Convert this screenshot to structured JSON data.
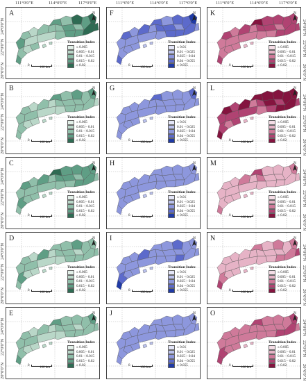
{
  "coordinates": {
    "longitude_labels": [
      "111°0'0\"E",
      "114°0'0\"E",
      "117°0'0\"E"
    ],
    "latitude_labels": [
      "24°0'0\"N",
      "22°0'0\"N",
      "20°0'0\"N"
    ]
  },
  "legend_title": "Transition Index",
  "scale_zero": "0",
  "scale_label": "100 km",
  "north_letter": "N",
  "columns": [
    {
      "colors": [
        "#e2efe8",
        "#b9d7c8",
        "#90bfaa",
        "#5f9e85",
        "#2e6b53"
      ],
      "classes": [
        "≤ 0.005",
        "0.005 – 0.01",
        "0.01 – 0.015",
        "0.015 – 0.02",
        "≥ 0.02"
      ],
      "panels": [
        {
          "label": "A",
          "levels": [
            3,
            2,
            1,
            2,
            1,
            2,
            3,
            2,
            1,
            2,
            3,
            4,
            2,
            3,
            4,
            3,
            2,
            3,
            4,
            4,
            2,
            1,
            2,
            3
          ]
        },
        {
          "label": "B",
          "levels": [
            2,
            2,
            1,
            2,
            2,
            1,
            3,
            2,
            1,
            2,
            2,
            3,
            2,
            2,
            3,
            2,
            1,
            2,
            2,
            1,
            1,
            1,
            2,
            2
          ]
        },
        {
          "label": "C",
          "levels": [
            2,
            3,
            2,
            3,
            2,
            2,
            4,
            3,
            2,
            3,
            3,
            3,
            2,
            3,
            3,
            2,
            2,
            3,
            3,
            2,
            2,
            2,
            3,
            2
          ]
        },
        {
          "label": "D",
          "levels": [
            2,
            2,
            1,
            3,
            2,
            1,
            2,
            2,
            1,
            2,
            2,
            3,
            1,
            2,
            2,
            2,
            1,
            2,
            2,
            2,
            1,
            1,
            3,
            2
          ]
        },
        {
          "label": "E",
          "levels": [
            2,
            2,
            1,
            2,
            2,
            1,
            3,
            2,
            1,
            2,
            2,
            2,
            1,
            2,
            3,
            2,
            1,
            2,
            2,
            2,
            1,
            1,
            2,
            3
          ]
        }
      ]
    },
    {
      "colors": [
        "#e3e5f7",
        "#b9c0ec",
        "#8d97dd",
        "#5c6acb",
        "#1f3aa6"
      ],
      "classes": [
        "≤ 0.01",
        "0.01 – 0.025",
        "0.025 – 0.04",
        "0.04 – 0.055",
        "≥ 0.055"
      ],
      "panels": [
        {
          "label": "F",
          "levels": [
            2,
            3,
            2,
            3,
            2,
            2,
            3,
            3,
            2,
            2,
            3,
            3,
            2,
            3,
            4,
            3,
            2,
            3,
            3,
            2,
            2,
            2,
            2,
            3
          ]
        },
        {
          "label": "G",
          "levels": [
            2,
            2,
            2,
            2,
            2,
            2,
            3,
            2,
            2,
            2,
            2,
            2,
            2,
            2,
            3,
            2,
            2,
            2,
            2,
            2,
            2,
            2,
            2,
            2
          ]
        },
        {
          "label": "H",
          "levels": [
            2,
            2,
            2,
            2,
            2,
            2,
            2,
            2,
            2,
            2,
            2,
            2,
            2,
            2,
            2,
            2,
            2,
            2,
            2,
            2,
            2,
            2,
            2,
            2
          ]
        },
        {
          "label": "I",
          "levels": [
            2,
            2,
            2,
            3,
            2,
            2,
            2,
            2,
            2,
            2,
            2,
            3,
            2,
            2,
            2,
            2,
            2,
            3,
            2,
            2,
            2,
            2,
            3,
            4
          ]
        },
        {
          "label": "J",
          "levels": [
            2,
            2,
            2,
            2,
            2,
            2,
            2,
            2,
            2,
            2,
            2,
            2,
            2,
            2,
            2,
            2,
            2,
            2,
            2,
            2,
            2,
            2,
            2,
            2
          ]
        }
      ]
    },
    {
      "colors": [
        "#f4dde6",
        "#e6b3c6",
        "#cf7a9a",
        "#b04372",
        "#84143f"
      ],
      "classes": [
        "≤ 0.005",
        "0.005 – 0.01",
        "0.01 – 0.015",
        "0.015 – 0.02",
        "≥ 0.02"
      ],
      "panels": [
        {
          "label": "K",
          "levels": [
            2,
            3,
            2,
            3,
            2,
            2,
            4,
            3,
            2,
            3,
            3,
            3,
            2,
            3,
            3,
            2,
            2,
            3,
            3,
            3,
            2,
            2,
            2,
            3
          ]
        },
        {
          "label": "L",
          "levels": [
            3,
            4,
            3,
            4,
            3,
            2,
            4,
            3,
            3,
            4,
            4,
            4,
            3,
            4,
            4,
            3,
            2,
            4,
            4,
            3,
            3,
            2,
            3,
            4
          ]
        },
        {
          "label": "M",
          "levels": [
            1,
            1,
            1,
            2,
            1,
            1,
            3,
            2,
            1,
            1,
            1,
            1,
            1,
            1,
            2,
            1,
            1,
            1,
            1,
            1,
            1,
            1,
            1,
            2
          ]
        },
        {
          "label": "N",
          "levels": [
            1,
            1,
            1,
            1,
            1,
            1,
            2,
            1,
            1,
            1,
            1,
            2,
            1,
            1,
            2,
            1,
            1,
            2,
            2,
            3,
            1,
            1,
            2,
            3
          ]
        },
        {
          "label": "O",
          "levels": [
            2,
            2,
            2,
            2,
            2,
            2,
            3,
            2,
            2,
            2,
            2,
            2,
            2,
            2,
            3,
            2,
            2,
            3,
            3,
            2,
            2,
            2,
            3,
            3
          ]
        }
      ]
    }
  ]
}
